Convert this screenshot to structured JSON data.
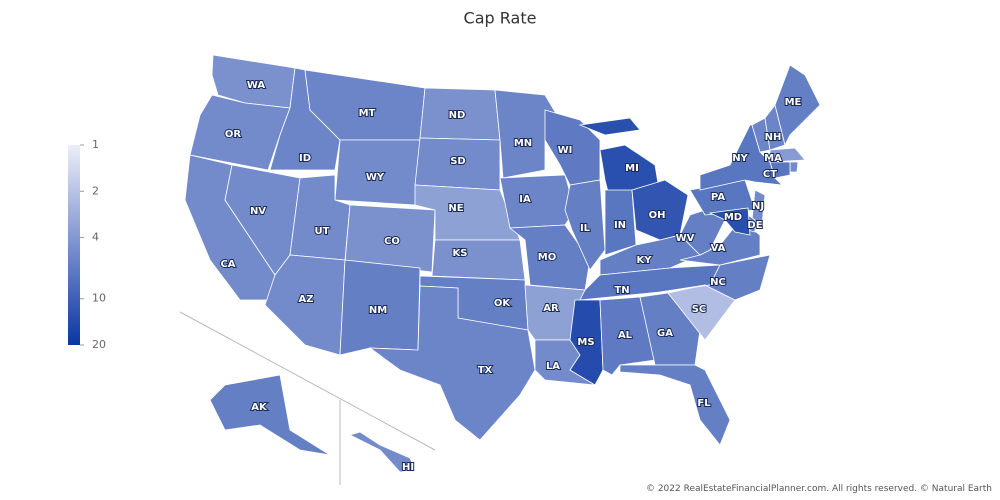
{
  "chart_data": {
    "type": "choropleth",
    "title": "Cap Rate",
    "categories": [
      "WA",
      "OR",
      "CA",
      "NV",
      "ID",
      "MT",
      "WY",
      "UT",
      "CO",
      "AZ",
      "NM",
      "ND",
      "SD",
      "NE",
      "KS",
      "OK",
      "TX",
      "MN",
      "IA",
      "MO",
      "AR",
      "LA",
      "WI",
      "IL",
      "MI",
      "IN",
      "OH",
      "KY",
      "TN",
      "MS",
      "AL",
      "GA",
      "FL",
      "SC",
      "NC",
      "VA",
      "WV",
      "PA",
      "NY",
      null,
      "NH",
      "ME",
      "MA",
      null,
      "CT",
      "NJ",
      "DE",
      "MD",
      "AK",
      "HI"
    ],
    "values": [
      4.5,
      5,
      5,
      5,
      5.5,
      5.5,
      5,
      5,
      4.5,
      5,
      6,
      4.5,
      5,
      3.5,
      4.5,
      6,
      5.5,
      5.5,
      5.5,
      6,
      3.5,
      5,
      6.5,
      6,
      13,
      7,
      12,
      6,
      7,
      14,
      6.5,
      6,
      6,
      2.2,
      6,
      6,
      6,
      7,
      7,
      5.5,
      5.5,
      6,
      3.8,
      5,
      7,
      5,
      6,
      13,
      6,
      5
    ],
    "colors": [
      "#eceef8",
      "#0a35a3"
    ],
    "log_scale": true,
    "clim": [
      1,
      20
    ],
    "cticks": [
      1,
      2,
      4,
      10,
      20
    ]
  },
  "footer": "© 2022 RealEstateFinancialPlanner.com. All rights reserved. © Natural Earth"
}
